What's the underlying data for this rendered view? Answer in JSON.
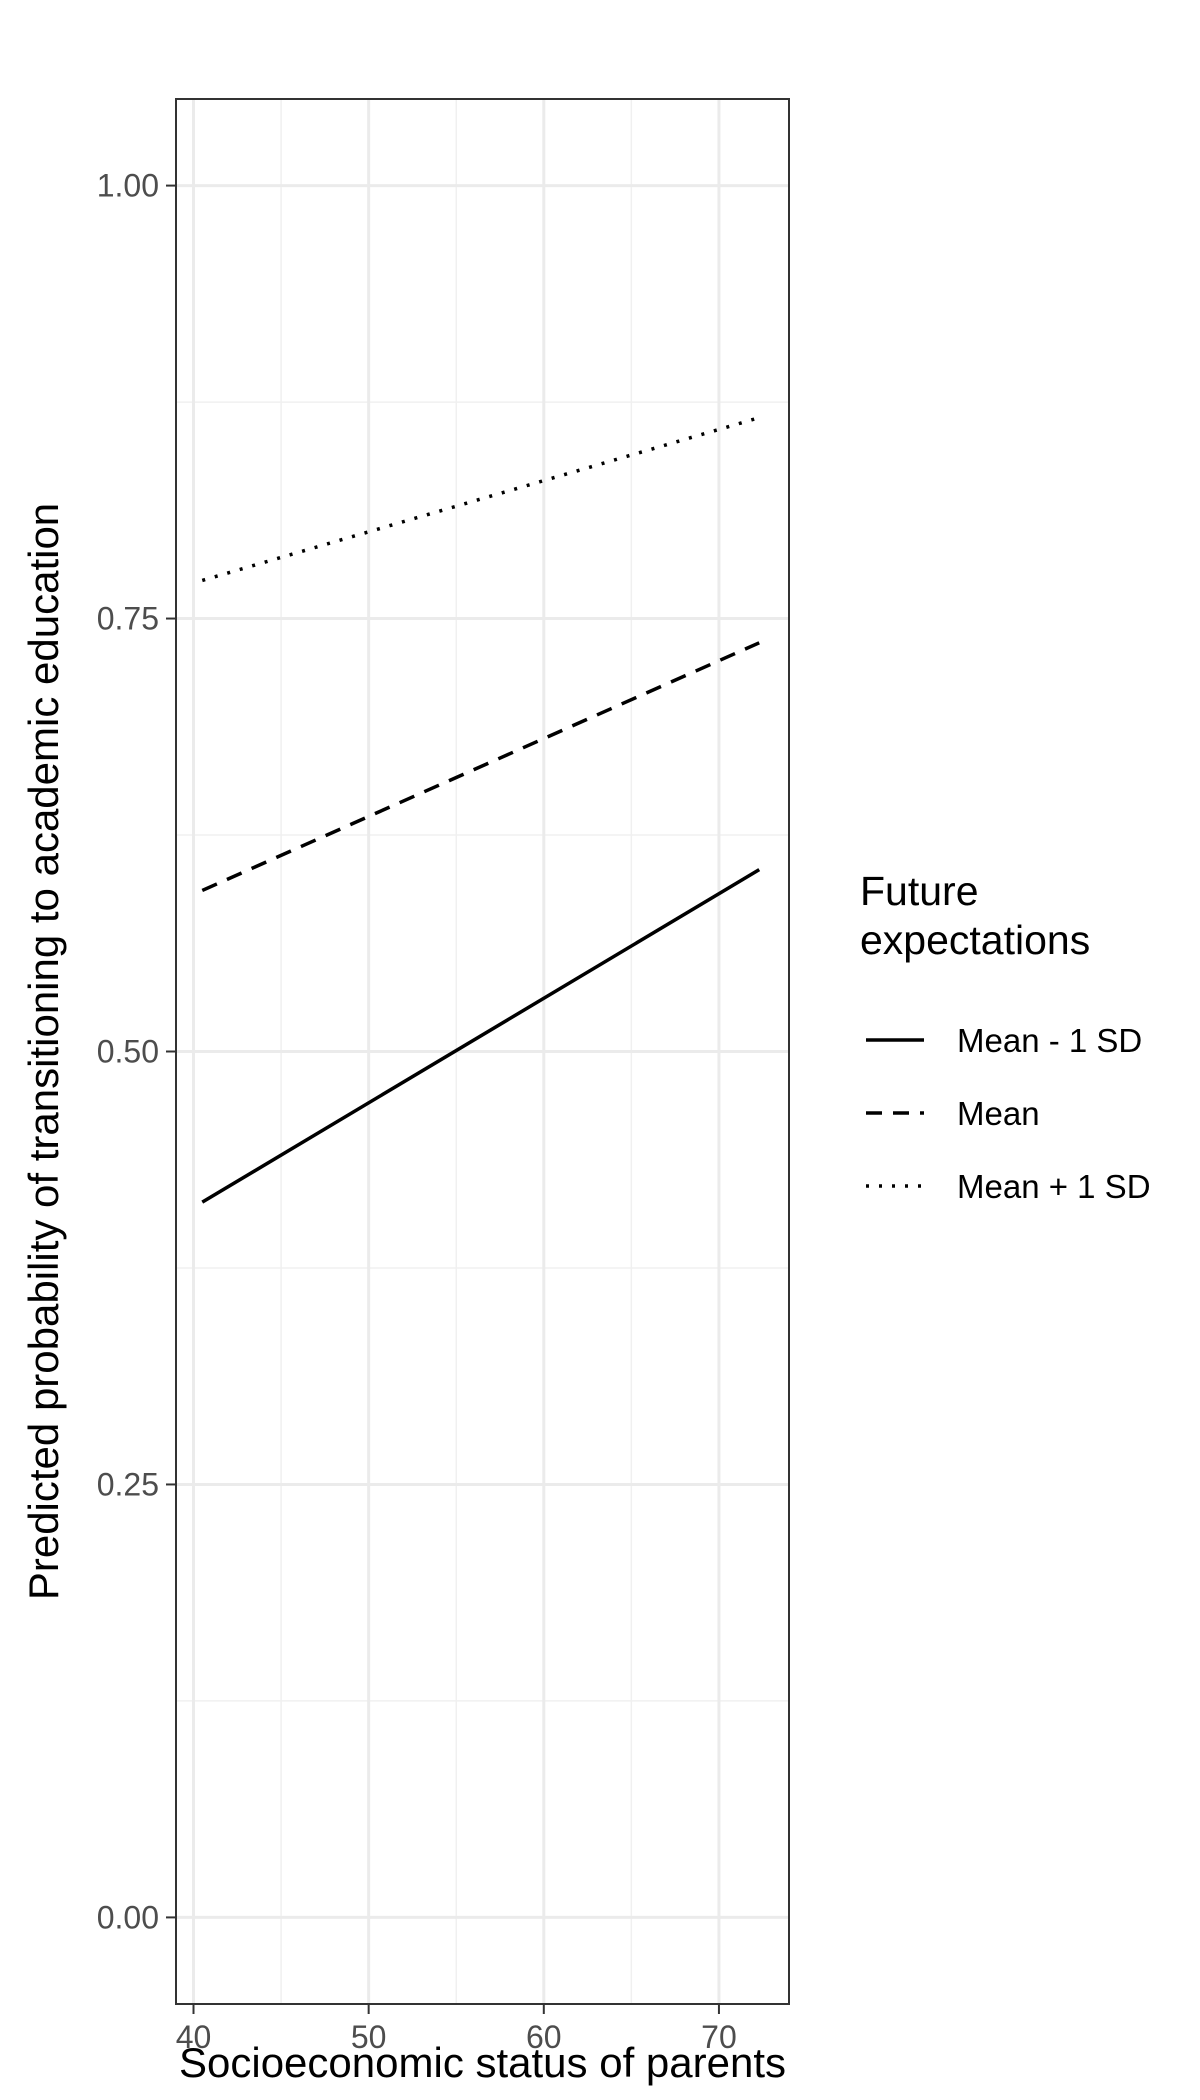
{
  "chart_data": {
    "type": "line",
    "title": "",
    "xlabel": "Socioeconomic status of parents",
    "ylabel": "Predicted probability of transitioning to academic education",
    "xlim": [
      39,
      74
    ],
    "ylim": [
      -0.05,
      1.05
    ],
    "x_ticks": [
      40,
      50,
      60,
      70
    ],
    "x_tick_labels": [
      "40",
      "50",
      "60",
      "70"
    ],
    "y_ticks": [
      0,
      0.25,
      0.5,
      0.75,
      1.0
    ],
    "y_tick_labels": [
      "0.00",
      "0.25",
      "0.50",
      "0.75",
      "1.00"
    ],
    "grid": true,
    "legend": {
      "title_lines": [
        "Future",
        "expectations"
      ],
      "position": "right"
    },
    "series": [
      {
        "name": "Mean - 1 SD",
        "linetype": "solid",
        "color": "#000000",
        "x": [
          40.5,
          72.3
        ],
        "y": [
          0.413,
          0.605
        ]
      },
      {
        "name": "Mean",
        "linetype": "dashed",
        "color": "#000000",
        "x": [
          40.5,
          72.3
        ],
        "y": [
          0.593,
          0.736
        ]
      },
      {
        "name": "Mean + 1 SD",
        "linetype": "dotted",
        "color": "#000000",
        "x": [
          40.5,
          72.3
        ],
        "y": [
          0.772,
          0.866
        ]
      }
    ]
  }
}
